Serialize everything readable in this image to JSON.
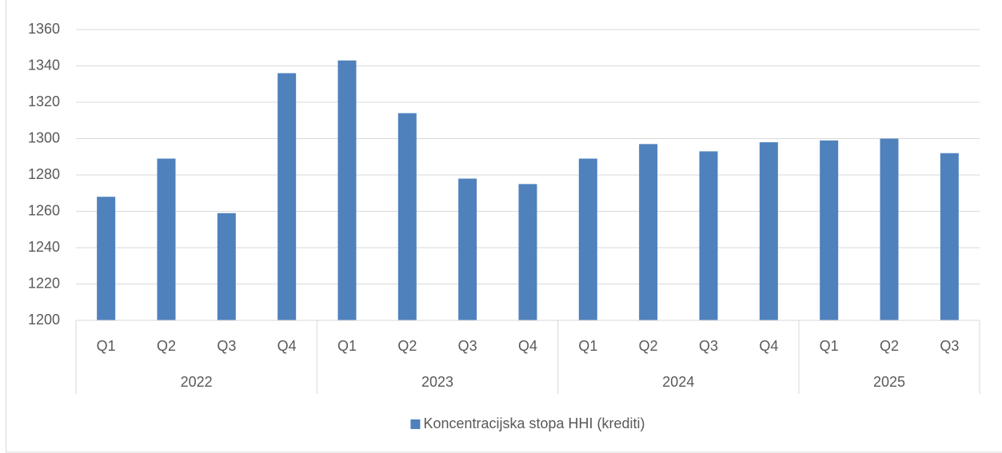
{
  "chart_data": {
    "type": "bar",
    "groups": [
      {
        "name": "2022",
        "categories": [
          "Q1",
          "Q2",
          "Q3",
          "Q4"
        ]
      },
      {
        "name": "2023",
        "categories": [
          "Q1",
          "Q2",
          "Q3",
          "Q4"
        ]
      },
      {
        "name": "2024",
        "categories": [
          "Q1",
          "Q2",
          "Q3",
          "Q4"
        ]
      },
      {
        "name": "2025",
        "categories": [
          "Q1",
          "Q2",
          "Q3"
        ]
      }
    ],
    "series": [
      {
        "name": "Koncentracijska stopa HHI (krediti)",
        "color": "#4f81bd",
        "values": [
          1268,
          1289,
          1259,
          1336,
          1343,
          1314,
          1278,
          1275,
          1289,
          1297,
          1293,
          1298,
          1299,
          1300,
          1292
        ]
      }
    ],
    "ylim": [
      1200,
      1360
    ],
    "yticks": [
      1200,
      1220,
      1240,
      1260,
      1280,
      1300,
      1320,
      1340,
      1360
    ],
    "grid": true,
    "legend": "bottom"
  }
}
